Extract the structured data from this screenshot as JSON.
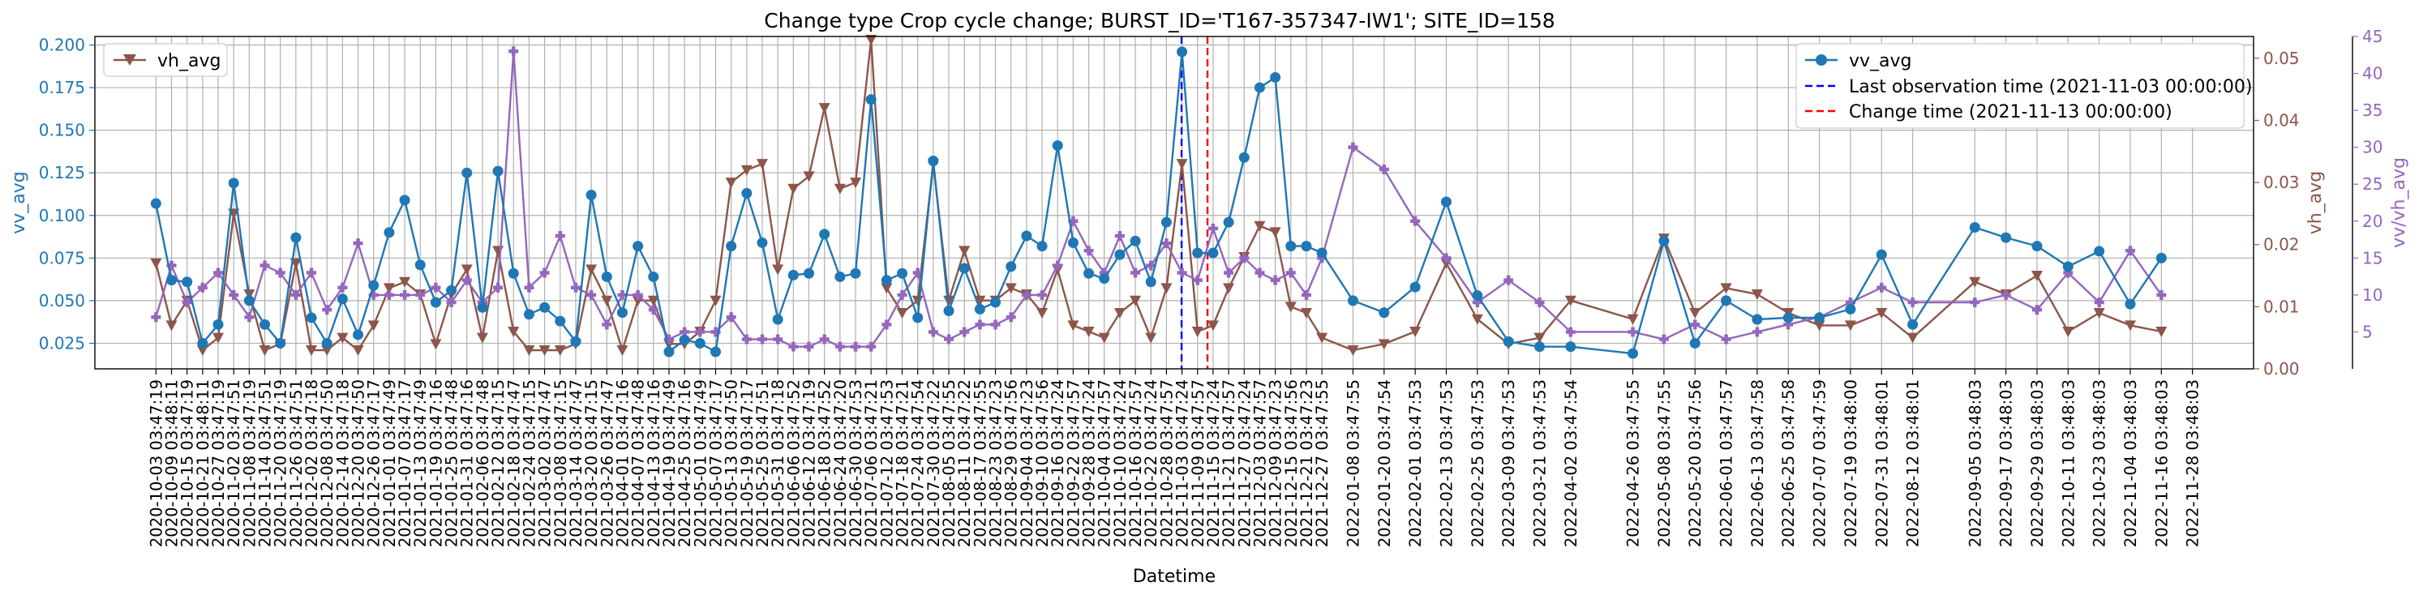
{
  "chart_data": {
    "type": "line",
    "title": "Change type Crop cycle change; BURST_ID='T167-357347-IW1'; SITE_ID=158",
    "xlabel": "Datetime",
    "ylabel_left": "vv_avg",
    "ylabel_right1": "vh_avg",
    "ylabel_right2": "vv/vh_avg",
    "ylim_left": [
      0.01,
      0.205
    ],
    "ylim_right1": [
      0.0,
      0.0535
    ],
    "ylim_right2": [
      0,
      45
    ],
    "yticks_left": [
      "0.025",
      "0.050",
      "0.075",
      "0.100",
      "0.125",
      "0.150",
      "0.175",
      "0.200"
    ],
    "yticks_right1": [
      "0.00",
      "0.01",
      "0.02",
      "0.03",
      "0.04",
      "0.05"
    ],
    "yticks_right2": [
      "5",
      "10",
      "15",
      "20",
      "25",
      "30",
      "35",
      "40",
      "45"
    ],
    "grid": true,
    "colors": {
      "vv": "#1f77b4",
      "vh": "#8c564b",
      "ratio": "#9467bd",
      "last_obs": "#0000ff",
      "change": "#ff0000"
    },
    "xticks": [
      "2020-10-03 03:47:19",
      "2020-10-09 03:48:11",
      "2020-10-15 03:47:19",
      "2020-10-21 03:48:11",
      "2020-10-27 03:47:19",
      "2020-11-02 03:47:51",
      "2020-11-08 03:47:19",
      "2020-11-14 03:47:51",
      "2020-11-20 03:47:19",
      "2020-11-26 03:47:51",
      "2020-12-02 03:47:18",
      "2020-12-08 03:47:50",
      "2020-12-14 03:47:18",
      "2020-12-20 03:47:50",
      "2020-12-26 03:47:17",
      "2021-01-01 03:47:49",
      "2021-01-07 03:47:17",
      "2021-01-13 03:47:49",
      "2021-01-19 03:47:16",
      "2021-01-25 03:47:48",
      "2021-01-31 03:47:16",
      "2021-02-06 03:47:48",
      "2021-02-12 03:47:15",
      "2021-02-18 03:47:47",
      "2021-02-24 03:47:15",
      "2021-03-02 03:47:47",
      "2021-03-08 03:47:15",
      "2021-03-14 03:47:47",
      "2021-03-20 03:47:15",
      "2021-03-26 03:47:47",
      "2021-04-01 03:47:16",
      "2021-04-07 03:47:48",
      "2021-04-13 03:47:16",
      "2021-04-19 03:47:49",
      "2021-04-25 03:47:16",
      "2021-05-01 03:47:49",
      "2021-05-07 03:47:17",
      "2021-05-13 03:47:50",
      "2021-05-19 03:47:17",
      "2021-05-25 03:47:51",
      "2021-05-31 03:47:18",
      "2021-06-06 03:47:52",
      "2021-06-12 03:47:19",
      "2021-06-18 03:47:52",
      "2021-06-24 03:47:20",
      "2021-06-30 03:47:53",
      "2021-07-06 03:47:21",
      "2021-07-12 03:47:53",
      "2021-07-18 03:47:21",
      "2021-07-24 03:47:54",
      "2021-07-30 03:47:22",
      "2021-08-05 03:47:55",
      "2021-08-11 03:47:22",
      "2021-08-17 03:47:55",
      "2021-08-23 03:47:23",
      "2021-08-29 03:47:56",
      "2021-09-04 03:47:23",
      "2021-09-10 03:47:56",
      "2021-09-16 03:47:24",
      "2021-09-22 03:47:57",
      "2021-09-28 03:47:24",
      "2021-10-04 03:47:57",
      "2021-10-10 03:47:24",
      "2021-10-16 03:47:57",
      "2021-10-22 03:47:24",
      "2021-10-28 03:47:57",
      "2021-11-03 03:47:24",
      "2021-11-09 03:47:57",
      "2021-11-15 03:47:24",
      "2021-11-21 03:47:57",
      "2021-11-27 03:47:24",
      "2021-12-03 03:47:57",
      "2021-12-09 03:47:23",
      "2021-12-15 03:47:56",
      "2021-12-21 03:47:23",
      "2021-12-27 03:47:55",
      "2022-01-08 03:47:55",
      "2022-01-20 03:47:54",
      "2022-02-01 03:47:53",
      "2022-02-13 03:47:53",
      "2022-02-25 03:47:53",
      "2022-03-09 03:47:53",
      "2022-03-21 03:47:53",
      "2022-04-02 03:47:54",
      "2022-04-26 03:47:55",
      "2022-05-08 03:47:55",
      "2022-05-20 03:47:56",
      "2022-06-01 03:47:57",
      "2022-06-13 03:47:58",
      "2022-06-25 03:47:58",
      "2022-07-07 03:47:59",
      "2022-07-19 03:48:00",
      "2022-07-31 03:48:01",
      "2022-08-12 03:48:01",
      "2022-09-05 03:48:03",
      "2022-09-17 03:48:03",
      "2022-09-29 03:48:03",
      "2022-10-11 03:48:03",
      "2022-10-23 03:48:03",
      "2022-11-04 03:48:03",
      "2022-11-16 03:48:03",
      "2022-11-28 03:48:03"
    ],
    "series": [
      {
        "name": "vv_avg",
        "axis": "left",
        "marker": "circle",
        "values": [
          0.107,
          0.062,
          0.061,
          0.025,
          0.036,
          0.119,
          0.05,
          0.036,
          0.025,
          0.087,
          0.04,
          0.025,
          0.051,
          0.03,
          0.059,
          0.09,
          0.109,
          0.071,
          0.049,
          0.056,
          0.125,
          0.046,
          0.126,
          0.066,
          0.042,
          0.046,
          0.038,
          0.026,
          0.112,
          0.064,
          0.043,
          0.082,
          0.064,
          0.02,
          0.027,
          0.025,
          0.02,
          0.082,
          0.113,
          0.084,
          0.039,
          0.065,
          0.066,
          0.089,
          0.064,
          0.066,
          0.168,
          0.062,
          0.066,
          0.04,
          0.132,
          0.044,
          0.069,
          0.045,
          0.049,
          0.07,
          0.088,
          0.082,
          0.141,
          0.084,
          0.066,
          0.063,
          0.077,
          0.085,
          0.061,
          0.096,
          0.196,
          0.078,
          0.078,
          0.096,
          0.134,
          0.175,
          0.181,
          0.082,
          0.082,
          0.078,
          0.05,
          0.043,
          0.058,
          0.108,
          0.053,
          0.026,
          0.023,
          0.023,
          0.019,
          0.085,
          0.025,
          0.05,
          0.039,
          0.04,
          0.04,
          0.045,
          0.077,
          0.036,
          0.093,
          0.087,
          0.082,
          0.07,
          0.079,
          0.048,
          0.075
        ]
      },
      {
        "name": "vh_avg",
        "axis": "right1",
        "marker": "triangle-down",
        "values": [
          0.017,
          0.007,
          0.011,
          0.003,
          0.005,
          0.025,
          0.012,
          0.003,
          0.004,
          0.017,
          0.003,
          0.003,
          0.005,
          0.003,
          0.007,
          0.013,
          0.014,
          0.012,
          0.004,
          0.012,
          0.016,
          0.005,
          0.019,
          0.006,
          0.003,
          0.003,
          0.003,
          0.004,
          0.016,
          0.011,
          0.003,
          0.011,
          0.011,
          0.004,
          0.004,
          0.006,
          0.011,
          0.03,
          0.032,
          0.033,
          0.016,
          0.029,
          0.031,
          0.042,
          0.029,
          0.03,
          0.053,
          0.013,
          0.009,
          0.011,
          0.033,
          0.011,
          0.019,
          0.011,
          0.011,
          0.013,
          0.012,
          0.009,
          0.016,
          0.007,
          0.006,
          0.005,
          0.009,
          0.011,
          0.005,
          0.013,
          0.033,
          0.006,
          0.007,
          0.013,
          0.018,
          0.023,
          0.022,
          0.01,
          0.009,
          0.005,
          0.003,
          0.004,
          0.006,
          0.017,
          0.008,
          0.004,
          0.005,
          0.011,
          0.008,
          0.021,
          0.009,
          0.013,
          0.012,
          0.009,
          0.007,
          0.007,
          0.009,
          0.005,
          0.014,
          0.012,
          0.015,
          0.006,
          0.009,
          0.007,
          0.006
        ]
      },
      {
        "name": "vv/vh_avg",
        "axis": "right2",
        "marker": "plus",
        "values": [
          7,
          14,
          9,
          11,
          13,
          10,
          7,
          14,
          13,
          10,
          13,
          8,
          11,
          17,
          10,
          10,
          10,
          10,
          11,
          9,
          12,
          9,
          11,
          43,
          11,
          13,
          18,
          11,
          10,
          6,
          10,
          10,
          8,
          4,
          5,
          5,
          5,
          7,
          4,
          4,
          4,
          3,
          3,
          4,
          3,
          3,
          3,
          6,
          10,
          13,
          5,
          4,
          5,
          6,
          6,
          7,
          10,
          10,
          14,
          20,
          16,
          13,
          18,
          13,
          14,
          17,
          13,
          12,
          19,
          13,
          15,
          13,
          12,
          13,
          10,
          15,
          30,
          27,
          20,
          15,
          9,
          12,
          9,
          5,
          5,
          4,
          6,
          4,
          5,
          6,
          7,
          9,
          11,
          9,
          9,
          10,
          8,
          13,
          9,
          16,
          10
        ]
      }
    ],
    "legend_left": {
      "position": "upper-left",
      "entries": [
        "vh_avg"
      ]
    },
    "legend_right": {
      "position": "upper-right",
      "entries": [
        "vv_avg",
        "Last observation time (2021-11-03 00:00:00)",
        "Change time (2021-11-13 00:00:00)"
      ]
    },
    "vlines": [
      {
        "name": "Last observation time (2021-11-03 00:00:00)",
        "x": "2021-11-03 00:00:00"
      },
      {
        "name": "Change time (2021-11-13 00:00:00)",
        "x": "2021-11-13 00:00:00"
      }
    ]
  }
}
